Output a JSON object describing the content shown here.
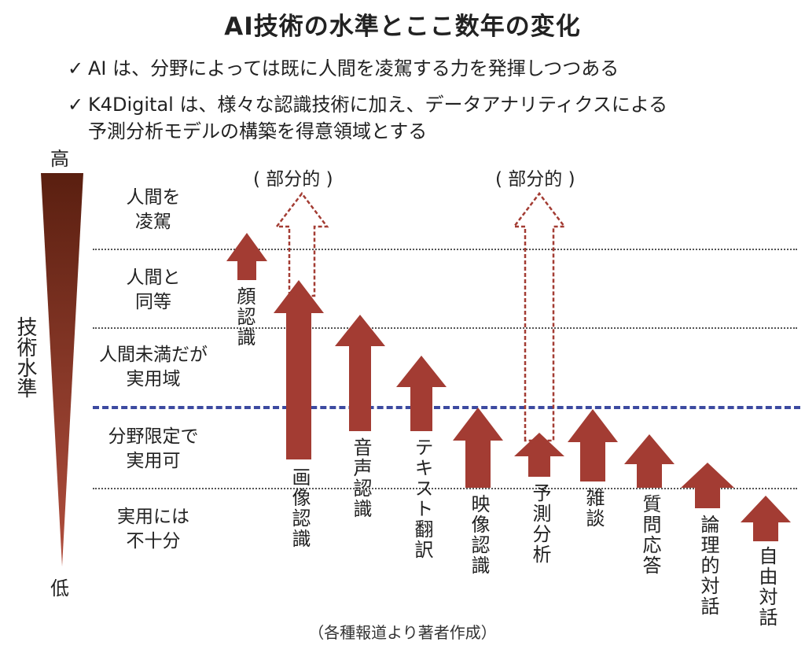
{
  "title": "AI技術の水準とここ数年の変化",
  "bullets": {
    "check": "✓",
    "b1": "AI は、分野によっては既に人間を凌駕する力を発揮しつつある",
    "b2_line1": "K4Digital は、様々な認識技術に加え、データアナリティクスによる",
    "b2_line2": "予測分析モデルの構築を得意領域とする"
  },
  "scale": {
    "high": "高",
    "low": "低",
    "axis_label": "技術水準"
  },
  "levels": {
    "surpass": [
      "人間を",
      "凌駕"
    ],
    "equal": [
      "人間と",
      "同等"
    ],
    "practical_below": [
      "人間未満だが",
      "実用域"
    ],
    "limited": [
      "分野限定で",
      "実用可"
    ],
    "insufficient": [
      "実用には",
      "不十分"
    ]
  },
  "partial_label": "( 部分的 )",
  "technologies": [
    {
      "name": "顔認識"
    },
    {
      "name": "画像認識"
    },
    {
      "name": "音声認識"
    },
    {
      "name": "テキスト翻訳"
    },
    {
      "name": "映像認識"
    },
    {
      "name": "予測分析"
    },
    {
      "name": "雑談"
    },
    {
      "name": "質問応答"
    },
    {
      "name": "論理的対話"
    },
    {
      "name": "自由対話"
    }
  ],
  "source": "（各種報道より著者作成）",
  "colors": {
    "arrow": "#a33c33",
    "gradient_top": "#5a1f10",
    "gradient_bottom": "#b24f3e",
    "threshold": "#3c4aa0",
    "divider": "#555555"
  }
}
